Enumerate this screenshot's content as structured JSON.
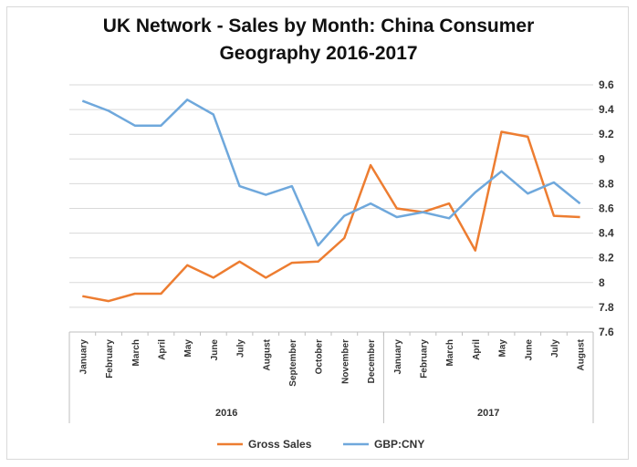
{
  "chart_data": {
    "type": "line",
    "title_line1": "UK Network - Sales by Month: China Consumer",
    "title_line2": "Geography 2016-2017",
    "categories": [
      "January",
      "February",
      "March",
      "April",
      "May",
      "June",
      "July",
      "August",
      "September",
      "October",
      "November",
      "December",
      "January",
      "February",
      "March",
      "April",
      "May",
      "June",
      "July",
      "August"
    ],
    "year_groups": [
      {
        "label": "2016",
        "start": 0,
        "end": 11
      },
      {
        "label": "2017",
        "start": 12,
        "end": 19
      }
    ],
    "y_right": {
      "min": 7.6,
      "max": 9.6,
      "step": 0.2,
      "ticks": [
        "7.6",
        "7.8",
        "8",
        "8.2",
        "8.4",
        "8.6",
        "8.8",
        "9",
        "9.2",
        "9.4",
        "9.6"
      ]
    },
    "grid": true,
    "legend_position": "bottom",
    "series": [
      {
        "name": "Gross Sales",
        "color": "#ed7d31",
        "axis": "secondary-hidden",
        "values": [
          7.89,
          7.85,
          7.91,
          7.91,
          8.14,
          8.04,
          8.17,
          8.04,
          8.16,
          8.17,
          8.36,
          8.95,
          8.6,
          8.57,
          8.64,
          8.26,
          9.22,
          9.18,
          8.54,
          8.53
        ]
      },
      {
        "name": "GBP:CNY",
        "color": "#6fa8dc",
        "axis": "right",
        "values": [
          9.47,
          9.39,
          9.27,
          9.27,
          9.48,
          9.36,
          8.78,
          8.71,
          8.78,
          8.3,
          8.54,
          8.64,
          8.53,
          8.57,
          8.52,
          8.73,
          8.9,
          8.72,
          8.81,
          8.64
        ]
      }
    ]
  }
}
